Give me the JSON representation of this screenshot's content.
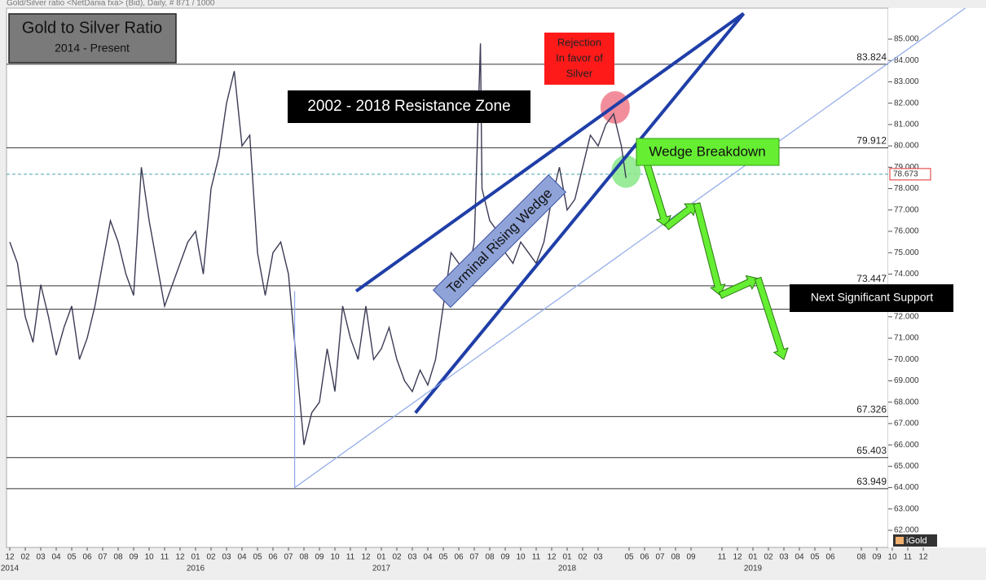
{
  "chart_data": {
    "type": "line",
    "header": "Gold/Silver ratio <NetDania fxa> (Bid), Daily, # 871 / 1000",
    "title": "Gold to Silver Ratio",
    "subtitle": "2014 - Present",
    "xlim": [
      0,
      59
    ],
    "ylim": [
      61.2,
      86.45
    ],
    "yticks": [
      {
        "value": 62,
        "label": "62.000"
      },
      {
        "value": 63,
        "label": "63.000"
      },
      {
        "value": 64,
        "label": "64.000"
      },
      {
        "value": 65,
        "label": "65.000"
      },
      {
        "value": 66,
        "label": "66.000"
      },
      {
        "value": 67,
        "label": "67.000"
      },
      {
        "value": 68,
        "label": "68.000"
      },
      {
        "value": 69,
        "label": "69.000"
      },
      {
        "value": 70,
        "label": "70.000"
      },
      {
        "value": 71,
        "label": "71.000"
      },
      {
        "value": 72,
        "label": "72.000"
      },
      {
        "value": 73,
        "label": "73.000"
      },
      {
        "value": 74,
        "label": "74.000"
      },
      {
        "value": 75,
        "label": "75.000"
      },
      {
        "value": 76,
        "label": "76.000"
      },
      {
        "value": 77,
        "label": "77.000"
      },
      {
        "value": 78,
        "label": "78.000"
      },
      {
        "value": 79,
        "label": "79.000"
      },
      {
        "value": 80,
        "label": "80.000"
      },
      {
        "value": 81,
        "label": "81.000"
      },
      {
        "value": 82,
        "label": "82.000"
      },
      {
        "value": 83,
        "label": "83.000"
      },
      {
        "value": 84,
        "label": "84.000"
      },
      {
        "value": 85,
        "label": "85.000"
      }
    ],
    "xticks": [
      {
        "value": 0,
        "label": "12"
      },
      {
        "value": 1,
        "label": "02"
      },
      {
        "value": 2,
        "label": "03"
      },
      {
        "value": 3,
        "label": "04"
      },
      {
        "value": 4,
        "label": "05"
      },
      {
        "value": 5,
        "label": "06"
      },
      {
        "value": 6,
        "label": "07"
      },
      {
        "value": 7,
        "label": "08"
      },
      {
        "value": 8,
        "label": "09"
      },
      {
        "value": 9,
        "label": "10"
      },
      {
        "value": 10,
        "label": "11"
      },
      {
        "value": 11,
        "label": "12"
      },
      {
        "value": 12,
        "label": "01"
      },
      {
        "value": 13,
        "label": "02"
      },
      {
        "value": 14,
        "label": "03"
      },
      {
        "value": 15,
        "label": "04"
      },
      {
        "value": 16,
        "label": "05"
      },
      {
        "value": 17,
        "label": "06"
      },
      {
        "value": 18,
        "label": "07"
      },
      {
        "value": 19,
        "label": "08"
      },
      {
        "value": 20,
        "label": "09"
      },
      {
        "value": 21,
        "label": "10"
      },
      {
        "value": 22,
        "label": "11"
      },
      {
        "value": 23,
        "label": "12"
      },
      {
        "value": 24,
        "label": "01"
      },
      {
        "value": 25,
        "label": "02"
      },
      {
        "value": 26,
        "label": "03"
      },
      {
        "value": 27,
        "label": "04"
      },
      {
        "value": 28,
        "label": "05"
      },
      {
        "value": 29,
        "label": "06"
      },
      {
        "value": 30,
        "label": "07"
      },
      {
        "value": 31,
        "label": "08"
      },
      {
        "value": 32,
        "label": "09"
      },
      {
        "value": 33,
        "label": "10"
      },
      {
        "value": 34,
        "label": "11"
      },
      {
        "value": 35,
        "label": "12"
      },
      {
        "value": 36,
        "label": "01"
      },
      {
        "value": 37,
        "label": "02"
      },
      {
        "value": 38,
        "label": "03"
      },
      {
        "value": 40,
        "label": "05"
      },
      {
        "value": 41,
        "label": "06"
      },
      {
        "value": 42,
        "label": "07"
      },
      {
        "value": 43,
        "label": "08"
      },
      {
        "value": 44,
        "label": "09"
      },
      {
        "value": 46,
        "label": "11"
      },
      {
        "value": 47,
        "label": "12"
      },
      {
        "value": 48,
        "label": "01"
      },
      {
        "value": 49,
        "label": "02"
      },
      {
        "value": 50,
        "label": "03"
      },
      {
        "value": 51,
        "label": "04"
      },
      {
        "value": 52,
        "label": "05"
      },
      {
        "value": 53,
        "label": "06"
      },
      {
        "value": 55,
        "label": "08"
      },
      {
        "value": 56,
        "label": "09"
      },
      {
        "value": 57,
        "label": "10"
      },
      {
        "value": 58,
        "label": "11"
      },
      {
        "value": 59,
        "label": "12"
      }
    ],
    "years": [
      {
        "value": 0,
        "label": "2014"
      },
      {
        "value": 12,
        "label": "2016"
      },
      {
        "value": 24,
        "label": "2017"
      },
      {
        "value": 36,
        "label": "2018"
      },
      {
        "value": 48,
        "label": "2019"
      }
    ],
    "series": [
      {
        "name": "Gold/Silver ratio",
        "color": "#3b3b55",
        "x": [
          0,
          0.5,
          1,
          1.5,
          2,
          2.5,
          3,
          3.5,
          4,
          4.5,
          5,
          5.5,
          6,
          6.5,
          7,
          7.5,
          8,
          8.5,
          9,
          9.5,
          10,
          10.5,
          11,
          11.5,
          12,
          12.5,
          13,
          13.5,
          14,
          14.5,
          15,
          15.5,
          16,
          16.5,
          17,
          17.5,
          18,
          18.5,
          19,
          19.5,
          20,
          20.5,
          21,
          21.5,
          22,
          22.5,
          23,
          23.5,
          24,
          24.5,
          25,
          25.5,
          26,
          26.5,
          27,
          27.5,
          28,
          28.5,
          29,
          29.5,
          30,
          30.4,
          30.5,
          31,
          31.5,
          32,
          32.5,
          33,
          33.5,
          34,
          34.5,
          35,
          35.5,
          36,
          36.5,
          37,
          37.5,
          38,
          38.5,
          39,
          39.5,
          39.8
        ],
        "values": [
          75.5,
          74.5,
          72.0,
          70.8,
          73.5,
          72.0,
          70.2,
          71.5,
          72.5,
          70.0,
          71.0,
          72.5,
          74.5,
          76.5,
          75.5,
          74.0,
          73.0,
          79.0,
          76.5,
          74.5,
          72.5,
          73.5,
          74.5,
          75.5,
          76.0,
          74.0,
          78.0,
          79.5,
          82.0,
          83.5,
          80.0,
          80.5,
          75.0,
          73.0,
          75.0,
          75.5,
          74.0,
          70.0,
          66.0,
          67.5,
          68.0,
          70.5,
          68.5,
          72.5,
          71.0,
          70.0,
          72.5,
          70.0,
          70.5,
          71.5,
          70.0,
          69.0,
          68.5,
          69.5,
          68.8,
          70.0,
          72.5,
          75.0,
          74.5,
          73.5,
          75.5,
          84.8,
          78.0,
          76.5,
          76.0,
          75.0,
          74.5,
          75.5,
          75.0,
          74.5,
          75.5,
          77.5,
          79.0,
          77.0,
          77.5,
          79.0,
          80.5,
          80.0,
          81.0,
          81.5,
          80.0,
          78.5
        ]
      }
    ],
    "levels": [
      83.824,
      79.912,
      73.447,
      67.326,
      65.403,
      63.949
    ],
    "extra_levels": [
      72.35
    ],
    "last_price": 78.673,
    "trendlines": [
      {
        "x": [
          22.37,
          47.4
        ],
        "y": [
          73.2,
          86.2
        ],
        "color": "#1f3ea8",
        "width": 4
      },
      {
        "x": [
          26.2,
          47.4
        ],
        "y": [
          67.5,
          86.2
        ],
        "color": "#1f3ea8",
        "width": 4
      },
      {
        "x": [
          18.4,
          62
        ],
        "y": [
          64.0,
          86.6
        ],
        "color": "#8ea8e8",
        "width": 1.2
      },
      {
        "x": [
          18.4,
          18.4
        ],
        "y": [
          64.0,
          73.2
        ],
        "color": "#8ea8e8",
        "width": 1.2
      }
    ],
    "projection": {
      "color": "#66ee33",
      "x": [
        41.05,
        42.42,
        44.37,
        45.89,
        48.32,
        50.0
      ],
      "y": [
        79.4,
        76.2,
        77.3,
        73.0,
        73.8,
        70.0
      ]
    },
    "circles": [
      {
        "x": 39.1,
        "y": 81.8,
        "color": "#f07a8a"
      },
      {
        "x": 39.8,
        "y": 78.8,
        "color": "#88e888"
      }
    ],
    "annotations": {
      "rejection": [
        "Rejection",
        "In favor of",
        "Silver"
      ],
      "resistance": "2002 - 2018 Resistance Zone",
      "wedge": "Terminal Rising Wedge",
      "breakdown": "Wedge Breakdown",
      "support": "Next Significant Support",
      "brand": "iGold"
    }
  }
}
